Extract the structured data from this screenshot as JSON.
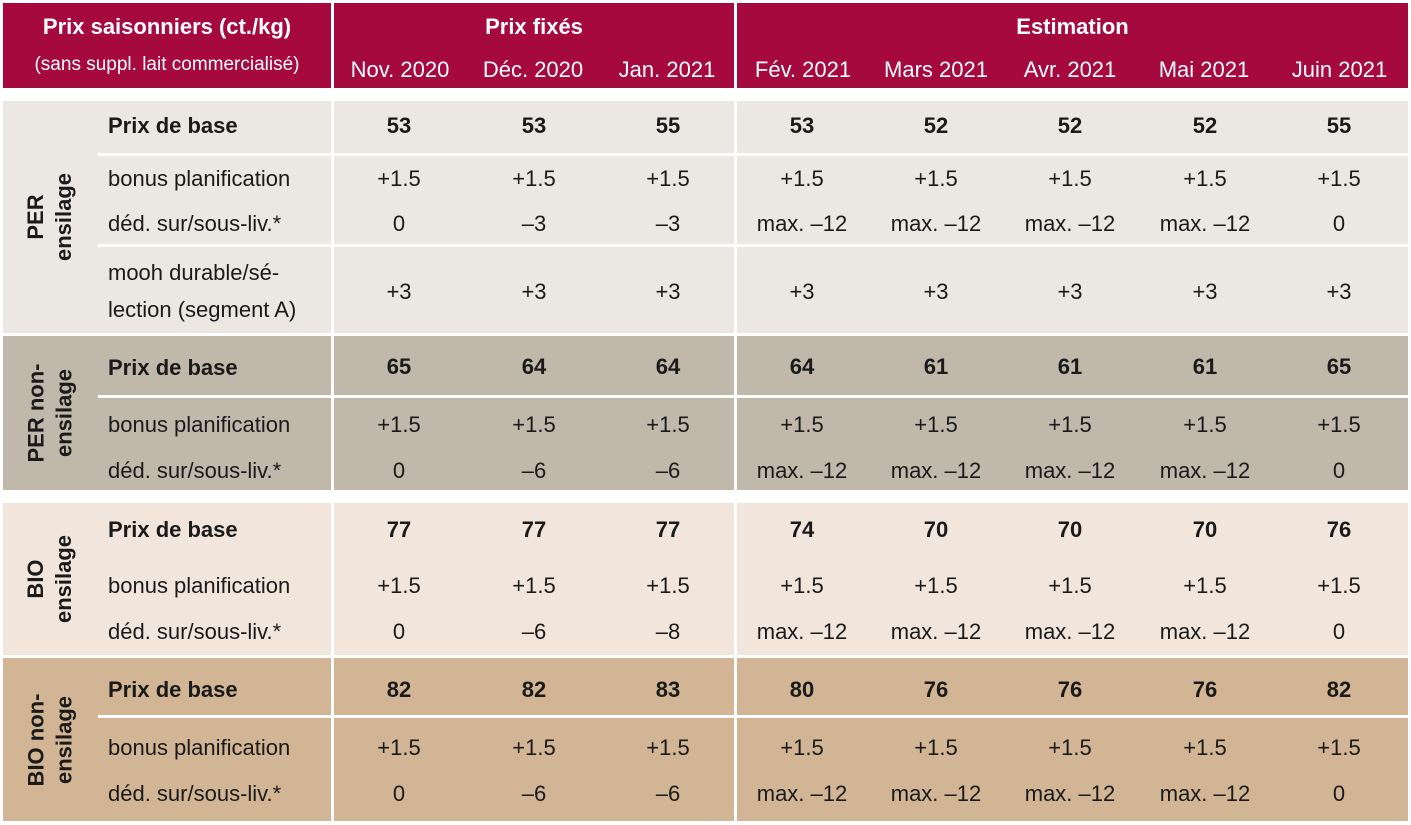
{
  "header": {
    "title": "Prix saisonniers (ct./kg)",
    "subtitle": "(sans suppl. lait commercialisé)",
    "group_fixed": "Prix fixés",
    "group_estimate": "Estimation",
    "months": [
      "Nov. 2020",
      "Déc. 2020",
      "Jan. 2021",
      "Fév. 2021",
      "Mars 2021",
      "Avr. 2021",
      "Mai 2021",
      "Juin 2021"
    ]
  },
  "colors": {
    "header": "#a6093d",
    "per_ensilage": "#ebe8e3",
    "per_non_ensilage": "#bfb8ab",
    "bio_ensilage": "#f2e6dc",
    "bio_non_ensilage": "#d1b595"
  },
  "sections": [
    {
      "label_line1": "PER",
      "label_line2": "ensilage",
      "rows": [
        {
          "label": "Prix de base",
          "values": [
            "53",
            "53",
            "55",
            "53",
            "52",
            "52",
            "52",
            "55"
          ]
        },
        {
          "label": "bonus planification",
          "values": [
            "+1.5",
            "+1.5",
            "+1.5",
            "+1.5",
            "+1.5",
            "+1.5",
            "+1.5",
            "+1.5"
          ]
        },
        {
          "label": "déd. sur/sous-liv.*",
          "values": [
            "0",
            "–3",
            "–3",
            "max. –12",
            "max. –12",
            "max. –12",
            "max. –12",
            "0"
          ]
        },
        {
          "label_line1": "mooh durable/sé-",
          "label_line2": "lection (segment A)",
          "values": [
            "+3",
            "+3",
            "+3",
            "+3",
            "+3",
            "+3",
            "+3",
            "+3"
          ]
        }
      ]
    },
    {
      "label_line1": "PER non-",
      "label_line2": "ensilage",
      "rows": [
        {
          "label": "Prix de base",
          "values": [
            "65",
            "64",
            "64",
            "64",
            "61",
            "61",
            "61",
            "65"
          ]
        },
        {
          "label": "bonus planification",
          "values": [
            "+1.5",
            "+1.5",
            "+1.5",
            "+1.5",
            "+1.5",
            "+1.5",
            "+1.5",
            "+1.5"
          ]
        },
        {
          "label": "déd. sur/sous-liv.*",
          "values": [
            "0",
            "–6",
            "–6",
            "max. –12",
            "max. –12",
            "max. –12",
            "max. –12",
            "0"
          ]
        }
      ]
    },
    {
      "label_line1": "BIO",
      "label_line2": "ensilage",
      "rows": [
        {
          "label": "Prix de base",
          "values": [
            "77",
            "77",
            "77",
            "74",
            "70",
            "70",
            "70",
            "76"
          ]
        },
        {
          "label": "bonus planification",
          "values": [
            "+1.5",
            "+1.5",
            "+1.5",
            "+1.5",
            "+1.5",
            "+1.5",
            "+1.5",
            "+1.5"
          ]
        },
        {
          "label": "déd. sur/sous-liv.*",
          "values": [
            "0",
            "–6",
            "–8",
            "max. –12",
            "max. –12",
            "max. –12",
            "max. –12",
            "0"
          ]
        }
      ]
    },
    {
      "label_line1": "BIO non-",
      "label_line2": "ensilage",
      "rows": [
        {
          "label": "Prix de base",
          "values": [
            "82",
            "82",
            "83",
            "80",
            "76",
            "76",
            "76",
            "82"
          ]
        },
        {
          "label": "bonus planification",
          "values": [
            "+1.5",
            "+1.5",
            "+1.5",
            "+1.5",
            "+1.5",
            "+1.5",
            "+1.5",
            "+1.5"
          ]
        },
        {
          "label": "déd. sur/sous-liv.*",
          "values": [
            "0",
            "–6",
            "–6",
            "max. –12",
            "max. –12",
            "max. –12",
            "max. –12",
            "0"
          ]
        }
      ]
    }
  ]
}
